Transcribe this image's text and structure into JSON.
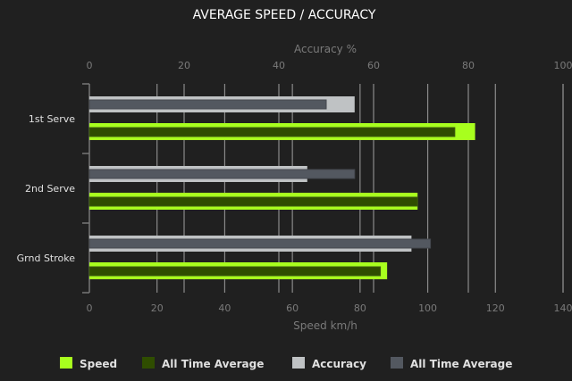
{
  "chart_data": {
    "type": "bar",
    "orientation": "horizontal",
    "title": "AVERAGE SPEED / ACCURACY",
    "categories": [
      "1st Serve",
      "2nd Serve",
      "Grnd Stroke"
    ],
    "x_axis_bottom": {
      "label": "Speed km/h",
      "range": [
        0,
        140
      ],
      "ticks": [
        0,
        20,
        40,
        60,
        80,
        100,
        120,
        140
      ]
    },
    "x_axis_top": {
      "label": "Accuracy %",
      "range": [
        0,
        100
      ],
      "ticks": [
        0,
        20,
        40,
        60,
        80,
        100
      ]
    },
    "grid": true,
    "legend_position": "bottom",
    "series": [
      {
        "name": "Speed",
        "axis": "bottom",
        "color": "#a8ff1e",
        "values": [
          114,
          97,
          88
        ]
      },
      {
        "name": "All Time Average",
        "axis": "bottom",
        "color": "#2f4d00",
        "values": [
          108,
          97,
          86
        ]
      },
      {
        "name": "Accuracy",
        "axis": "top",
        "color": "#bfc2c4",
        "values": [
          56,
          46,
          68
        ]
      },
      {
        "name": "All Time Average",
        "axis": "top",
        "color": "#535860",
        "values": [
          50,
          56,
          72
        ]
      }
    ]
  }
}
